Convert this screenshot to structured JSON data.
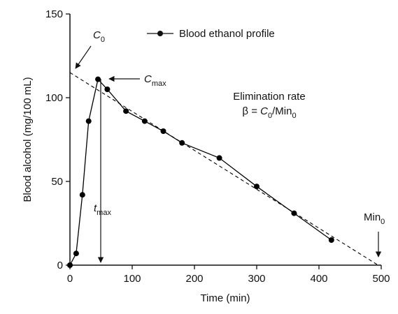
{
  "chart_data": {
    "type": "line",
    "title": "",
    "xlabel": "Time (min)",
    "ylabel": "Blood alcohol (mg/100 mL)",
    "xlim": [
      0,
      500
    ],
    "ylim": [
      0,
      150
    ],
    "xticks": [
      0,
      100,
      200,
      300,
      400,
      500
    ],
    "yticks": [
      0,
      50,
      100,
      150
    ],
    "grid": false,
    "legend_position": "top",
    "series": [
      {
        "name": "Blood ethanol profile",
        "marker": "circle",
        "line_style": "solid",
        "color": "#000000",
        "x": [
          0,
          10,
          20,
          30,
          45,
          60,
          90,
          120,
          150,
          180,
          240,
          300,
          360,
          420
        ],
        "y": [
          0,
          7,
          42,
          86,
          111,
          105,
          92,
          86,
          80,
          73,
          64,
          47,
          31,
          15
        ]
      },
      {
        "line_style": "dashed",
        "color": "#000000",
        "x": [
          0,
          495
        ],
        "y": [
          115,
          0
        ]
      }
    ],
    "annotations": {
      "c0": {
        "main": "C",
        "sub": "0"
      },
      "cmax": {
        "main": "C",
        "sub": "max"
      },
      "tmax": {
        "main": "t",
        "sub": "max"
      },
      "min0": {
        "main": "Min",
        "sub": "0"
      },
      "elim_title": "Elimination rate",
      "elim_formula": {
        "beta": "β = ",
        "c": "C",
        "c_sub": "0",
        "slash": "/Min",
        "min_sub": "0"
      }
    }
  }
}
